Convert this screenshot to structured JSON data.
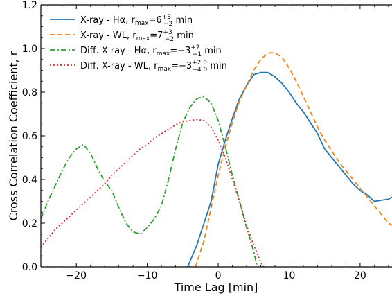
{
  "chart_data": {
    "type": "line",
    "xlabel": "Time Lag [min]",
    "ylabel": "Cross Correlation Coefficient, r",
    "xlim": [
      -25,
      24.5
    ],
    "ylim": [
      0,
      1.2
    ],
    "x_ticks": [
      -20,
      -10,
      0,
      10,
      20
    ],
    "x_tick_labels": [
      "−20",
      "−10",
      "0",
      "10",
      "20"
    ],
    "y_ticks": [
      0.0,
      0.2,
      0.4,
      0.6,
      0.8,
      1.0,
      1.2
    ],
    "y_tick_labels": [
      "0.0",
      "0.2",
      "0.4",
      "0.6",
      "0.8",
      "1.0",
      "1.2"
    ],
    "grid": false,
    "legend_position": "top-left",
    "series": [
      {
        "name": "X-ray - Hα, r_max=6 +3/−2 min",
        "legend": {
          "main": "X-ray - Hα, r",
          "sub1": "max",
          "mid": "=6",
          "sup": "+3",
          "sub2": "−2",
          "tail": " min"
        },
        "color": "#1f77b4",
        "dash": "solid",
        "points": [
          [
            -4.3,
            0.0
          ],
          [
            -3,
            0.1
          ],
          [
            -2,
            0.2
          ],
          [
            -1,
            0.3
          ],
          [
            0,
            0.47
          ],
          [
            1,
            0.58
          ],
          [
            2,
            0.68
          ],
          [
            3,
            0.77
          ],
          [
            4,
            0.83
          ],
          [
            5,
            0.88
          ],
          [
            6,
            0.89
          ],
          [
            7,
            0.89
          ],
          [
            8,
            0.87
          ],
          [
            9,
            0.84
          ],
          [
            10,
            0.8
          ],
          [
            11,
            0.75
          ],
          [
            12,
            0.71
          ],
          [
            13,
            0.66
          ],
          [
            14,
            0.61
          ],
          [
            15,
            0.54
          ],
          [
            16,
            0.5
          ],
          [
            17,
            0.46
          ],
          [
            18,
            0.42
          ],
          [
            19,
            0.38
          ],
          [
            20,
            0.35
          ],
          [
            21,
            0.33
          ],
          [
            22,
            0.3
          ],
          [
            23,
            0.305
          ],
          [
            24,
            0.31
          ],
          [
            24.5,
            0.32
          ]
        ]
      },
      {
        "name": "X-ray - WL, r_max=7 +3/−2 min",
        "legend": {
          "main": "X-ray - WL, r",
          "sub1": "max",
          "mid": "=7",
          "sup": "+3",
          "sub2": "−2",
          "tail": " min"
        },
        "color": "#ff7f0e",
        "dash": "dashed",
        "points": [
          [
            -3.2,
            0.0
          ],
          [
            -2,
            0.12
          ],
          [
            -1,
            0.27
          ],
          [
            0,
            0.42
          ],
          [
            1,
            0.55
          ],
          [
            2,
            0.66
          ],
          [
            3,
            0.76
          ],
          [
            4,
            0.83
          ],
          [
            5,
            0.9
          ],
          [
            6,
            0.95
          ],
          [
            7,
            0.98
          ],
          [
            8,
            0.98
          ],
          [
            9,
            0.96
          ],
          [
            10,
            0.91
          ],
          [
            11,
            0.85
          ],
          [
            12,
            0.78
          ],
          [
            13,
            0.71
          ],
          [
            14,
            0.64
          ],
          [
            15,
            0.58
          ],
          [
            16,
            0.53
          ],
          [
            17,
            0.48
          ],
          [
            18,
            0.44
          ],
          [
            19,
            0.4
          ],
          [
            20,
            0.36
          ],
          [
            21,
            0.32
          ],
          [
            22,
            0.28
          ],
          [
            23,
            0.24
          ],
          [
            24,
            0.2
          ],
          [
            24.5,
            0.19
          ]
        ]
      },
      {
        "name": "Diff. X-ray - Hα, r_max=−3 +2/−1 min",
        "legend": {
          "main": "Diff. X-ray - Hα, r",
          "sub1": "max",
          "mid": "=−3",
          "sup": "+2",
          "sub2": "−1",
          "tail": " min"
        },
        "color": "#2ca02c",
        "dash": "dashdot",
        "points": [
          [
            -25,
            0.22
          ],
          [
            -24,
            0.3
          ],
          [
            -23,
            0.37
          ],
          [
            -22,
            0.44
          ],
          [
            -21,
            0.5
          ],
          [
            -20,
            0.54
          ],
          [
            -19,
            0.56
          ],
          [
            -18,
            0.52
          ],
          [
            -17,
            0.45
          ],
          [
            -16,
            0.39
          ],
          [
            -15,
            0.35
          ],
          [
            -14,
            0.27
          ],
          [
            -13,
            0.2
          ],
          [
            -12,
            0.16
          ],
          [
            -11,
            0.15
          ],
          [
            -10,
            0.18
          ],
          [
            -9,
            0.22
          ],
          [
            -8,
            0.28
          ],
          [
            -7,
            0.4
          ],
          [
            -6,
            0.54
          ],
          [
            -5,
            0.66
          ],
          [
            -4,
            0.73
          ],
          [
            -3,
            0.77
          ],
          [
            -2,
            0.78
          ],
          [
            -1,
            0.75
          ],
          [
            0,
            0.67
          ],
          [
            1,
            0.55
          ],
          [
            2,
            0.42
          ],
          [
            3,
            0.3
          ],
          [
            4,
            0.18
          ],
          [
            5,
            0.07
          ],
          [
            5.5,
            0.0
          ]
        ]
      },
      {
        "name": "Diff. X-ray - WL, r_max=−3 +2.0/−4.0 min",
        "legend": {
          "main": "Diff. X-ray - WL, r",
          "sub1": "max",
          "mid": "=−3",
          "sup": "+2.0",
          "sub2": "−4.0",
          "tail": " min"
        },
        "color": "#d62728",
        "dash": "dotted",
        "points": [
          [
            -25,
            0.09
          ],
          [
            -24,
            0.13
          ],
          [
            -23,
            0.17
          ],
          [
            -22,
            0.2
          ],
          [
            -21,
            0.23
          ],
          [
            -20,
            0.26
          ],
          [
            -19,
            0.29
          ],
          [
            -18,
            0.32
          ],
          [
            -17,
            0.35
          ],
          [
            -16,
            0.38
          ],
          [
            -15,
            0.42
          ],
          [
            -14,
            0.45
          ],
          [
            -13,
            0.48
          ],
          [
            -12,
            0.51
          ],
          [
            -11,
            0.54
          ],
          [
            -10,
            0.56
          ],
          [
            -9,
            0.59
          ],
          [
            -8,
            0.61
          ],
          [
            -7,
            0.63
          ],
          [
            -6,
            0.65
          ],
          [
            -5,
            0.665
          ],
          [
            -4,
            0.67
          ],
          [
            -3,
            0.675
          ],
          [
            -2,
            0.67
          ],
          [
            -1,
            0.64
          ],
          [
            0,
            0.58
          ],
          [
            1,
            0.5
          ],
          [
            2,
            0.4
          ],
          [
            3,
            0.3
          ],
          [
            4,
            0.19
          ],
          [
            5,
            0.1
          ],
          [
            6,
            0.02
          ],
          [
            6.4,
            0.0
          ]
        ]
      }
    ]
  }
}
